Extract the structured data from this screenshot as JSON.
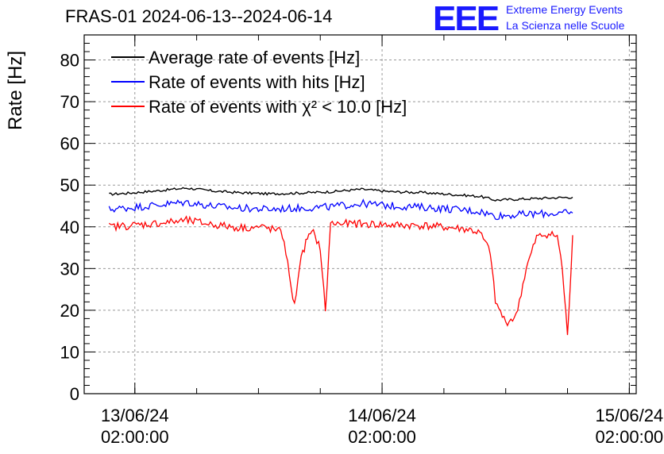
{
  "header": {
    "title": "FRAS-01 2024-06-13--2024-06-14",
    "logo": "EEE",
    "logo_line1": "Extreme Energy Events",
    "logo_line2": "La Scienza nelle Scuole"
  },
  "chart_data": {
    "type": "line",
    "title": "FRAS-01 2024-06-13--2024-06-14",
    "xlabel": "",
    "ylabel": "Rate [Hz]",
    "ylim": [
      0,
      86
    ],
    "yticks": [
      0,
      10,
      20,
      30,
      40,
      50,
      60,
      70,
      80
    ],
    "xlim": [
      "2024-06-12T21:05:00",
      "2024-06-15T02:40:00"
    ],
    "xticks": [
      {
        "date": "13/06/24",
        "time": "02:00:00",
        "x": "2024-06-13T02:00:00"
      },
      {
        "date": "14/06/24",
        "time": "02:00:00",
        "x": "2024-06-14T02:00:00"
      },
      {
        "date": "15/06/24",
        "time": "02:00:00",
        "x": "2024-06-15T02:00:00"
      }
    ],
    "grid": true,
    "legend_position": "top-left",
    "series": [
      {
        "name": "Average rate of events [Hz]",
        "color": "#000000",
        "x": [
          "2024-06-12T23:30:00",
          "2024-06-13T01:30:00",
          "2024-06-13T04:00:00",
          "2024-06-13T07:00:00",
          "2024-06-13T09:30:00",
          "2024-06-13T12:00:00",
          "2024-06-13T15:00:00",
          "2024-06-13T18:00:00",
          "2024-06-13T21:00:00",
          "2024-06-14T00:00:00",
          "2024-06-14T03:00:00",
          "2024-06-14T06:00:00",
          "2024-06-14T09:00:00",
          "2024-06-14T11:30:00",
          "2024-06-14T13:00:00",
          "2024-06-14T15:00:00",
          "2024-06-14T18:00:00",
          "2024-06-14T20:30:00"
        ],
        "values": [
          47.8,
          48.1,
          48.6,
          49.3,
          48.6,
          48.2,
          47.9,
          48.1,
          48.4,
          49.0,
          48.4,
          48.2,
          47.7,
          47.3,
          46.4,
          46.6,
          46.9,
          47.1
        ]
      },
      {
        "name": "Rate of events with hits [Hz]",
        "color": "#0000ff",
        "x": [
          "2024-06-12T23:30:00",
          "2024-06-13T01:30:00",
          "2024-06-13T04:00:00",
          "2024-06-13T07:00:00",
          "2024-06-13T09:30:00",
          "2024-06-13T12:00:00",
          "2024-06-13T15:00:00",
          "2024-06-13T18:00:00",
          "2024-06-13T21:00:00",
          "2024-06-14T00:00:00",
          "2024-06-14T03:00:00",
          "2024-06-14T06:00:00",
          "2024-06-14T09:00:00",
          "2024-06-14T11:30:00",
          "2024-06-14T13:00:00",
          "2024-06-14T15:00:00",
          "2024-06-14T18:00:00",
          "2024-06-14T20:30:00"
        ],
        "values": [
          44.2,
          44.6,
          45.2,
          45.9,
          45.0,
          44.5,
          44.2,
          44.5,
          44.8,
          45.6,
          45.0,
          44.7,
          44.2,
          43.7,
          42.6,
          42.9,
          43.2,
          43.3
        ]
      },
      {
        "name": "Rate of events with χ² < 10.0 [Hz]",
        "color": "#ff0000",
        "x": [
          "2024-06-12T23:30:00",
          "2024-06-13T01:30:00",
          "2024-06-13T04:00:00",
          "2024-06-13T07:00:00",
          "2024-06-13T09:30:00",
          "2024-06-13T12:00:00",
          "2024-06-13T14:30:00",
          "2024-06-13T16:00:00",
          "2024-06-13T16:30:00",
          "2024-06-13T17:00:00",
          "2024-06-13T17:30:00",
          "2024-06-13T18:00:00",
          "2024-06-13T18:45:00",
          "2024-06-13T19:20:00",
          "2024-06-13T20:00:00",
          "2024-06-13T20:30:00",
          "2024-06-13T21:00:00",
          "2024-06-14T00:00:00",
          "2024-06-14T03:00:00",
          "2024-06-14T06:00:00",
          "2024-06-14T09:00:00",
          "2024-06-14T10:30:00",
          "2024-06-14T11:30:00",
          "2024-06-14T12:30:00",
          "2024-06-14T13:00:00",
          "2024-06-14T14:00:00",
          "2024-06-14T15:00:00",
          "2024-06-14T16:00:00",
          "2024-06-14T17:00:00",
          "2024-06-14T18:00:00",
          "2024-06-14T19:00:00",
          "2024-06-14T19:30:00",
          "2024-06-14T20:00:00",
          "2024-06-14T20:30:00"
        ],
        "values": [
          40.0,
          40.3,
          40.8,
          41.5,
          40.6,
          39.8,
          39.9,
          39.0,
          37.0,
          28.0,
          21.0,
          31.0,
          37.5,
          38.5,
          35.0,
          19.5,
          40.8,
          40.7,
          40.4,
          40.3,
          39.7,
          39.3,
          38.5,
          34.0,
          22.0,
          17.0,
          18.5,
          30.0,
          37.5,
          38.3,
          37.8,
          30.0,
          13.5,
          38.0
        ]
      }
    ]
  }
}
